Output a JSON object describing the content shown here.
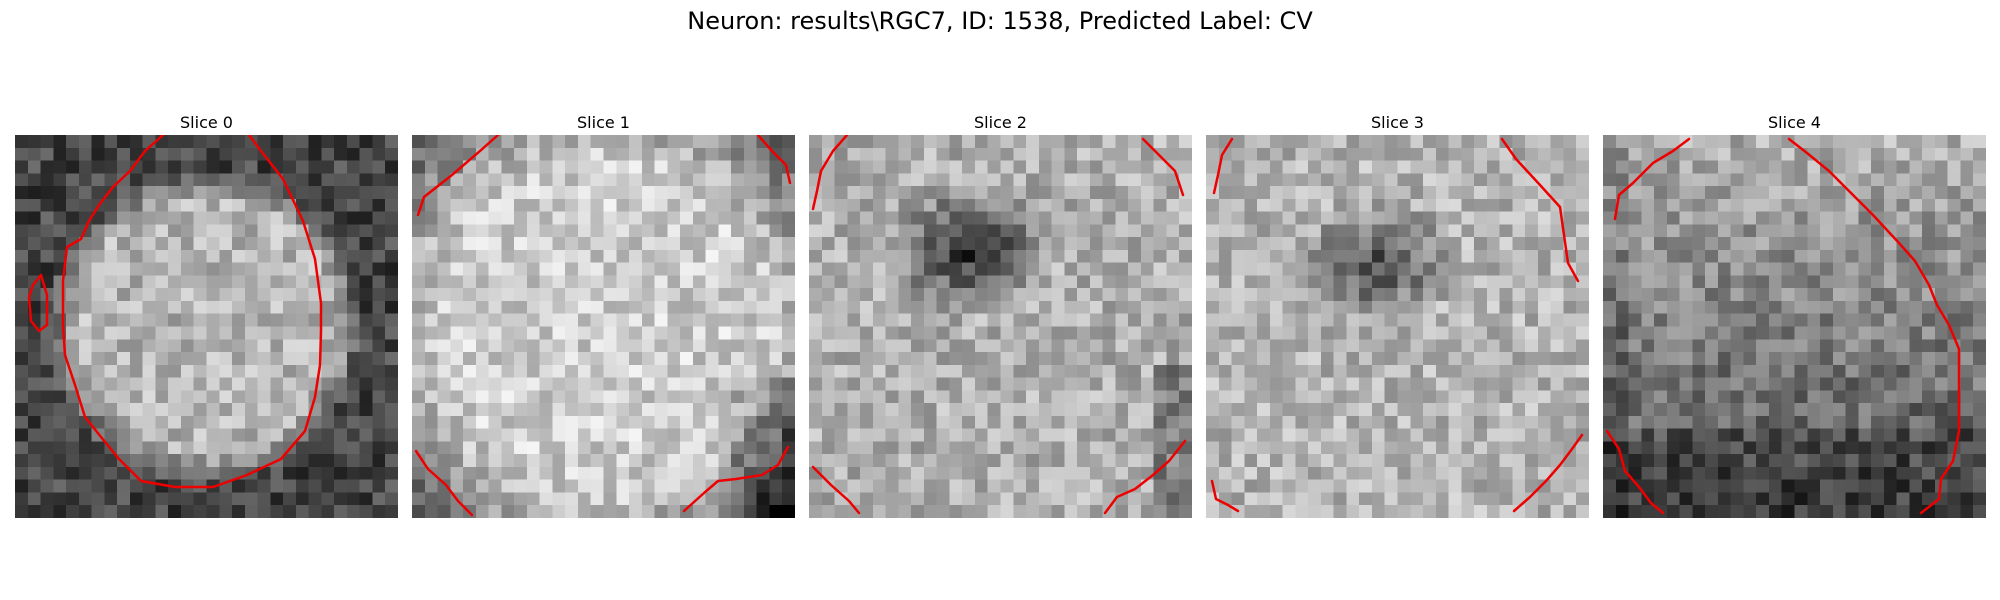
{
  "figure": {
    "title": "Neuron: results\\RGC7, ID: 1538, Predicted Label: CV"
  },
  "panels": [
    {
      "title": "Slice 0",
      "pattern": "bright-disk",
      "seed": 11
    },
    {
      "title": "Slice 1",
      "pattern": "bright-uniform",
      "seed": 23
    },
    {
      "title": "Slice 2",
      "pattern": "dark-center",
      "seed": 37
    },
    {
      "title": "Slice 3",
      "pattern": "dark-center-faint",
      "seed": 53
    },
    {
      "title": "Slice 4",
      "pattern": "bright-gradient",
      "seed": 71
    }
  ],
  "colors": {
    "contour": "#ee0000",
    "background": "#ffffff"
  }
}
